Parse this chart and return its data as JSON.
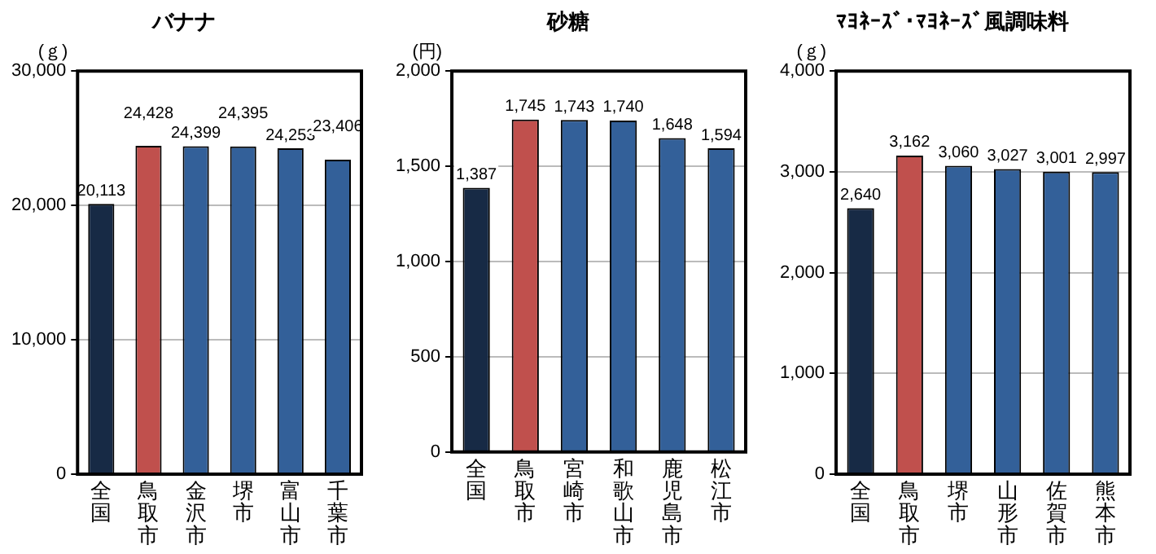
{
  "chart_data": [
    {
      "type": "bar",
      "title": "バナナ",
      "ylabel": "(ｇ)",
      "categories": [
        "全国",
        "鳥取市",
        "金沢市",
        "堺市",
        "富山市",
        "千葉市"
      ],
      "values": [
        20113,
        24428,
        24399,
        24395,
        24253,
        23406
      ],
      "colors": [
        "#172a45",
        "#c0504d",
        "#336099",
        "#336099",
        "#336099",
        "#336099"
      ],
      "value_labels": [
        "20,113",
        "24,428",
        "24,399",
        "24,395",
        "24,253",
        "23,406"
      ],
      "ylim": [
        0,
        30000
      ],
      "yticks": [
        {
          "value": 0,
          "label": "0"
        },
        {
          "value": 10000,
          "label": "10,000"
        },
        {
          "value": 20000,
          "label": "20,000"
        },
        {
          "value": 30000,
          "label": "30,000"
        }
      ],
      "grid": "y"
    },
    {
      "type": "bar",
      "title": "砂糖",
      "ylabel": "(円)",
      "categories": [
        "全国",
        "鳥取市",
        "宮崎市",
        "和歌山市",
        "鹿児島市",
        "松江市"
      ],
      "values": [
        1387,
        1745,
        1743,
        1740,
        1648,
        1594
      ],
      "colors": [
        "#172a45",
        "#c0504d",
        "#336099",
        "#336099",
        "#336099",
        "#336099"
      ],
      "value_labels": [
        "1,387",
        "1,745",
        "1,743",
        "1,740",
        "1,648",
        "1,594"
      ],
      "ylim": [
        0,
        2000
      ],
      "yticks": [
        {
          "value": 0,
          "label": "0"
        },
        {
          "value": 500,
          "label": "500"
        },
        {
          "value": 1000,
          "label": "1,000"
        },
        {
          "value": 1500,
          "label": "1,500"
        },
        {
          "value": 2000,
          "label": "2,000"
        }
      ],
      "grid": "y"
    },
    {
      "type": "bar",
      "title": "ﾏﾖﾈｰｽﾞ･ﾏﾖﾈｰｽﾞ風調味料",
      "ylabel": "(ｇ)",
      "categories": [
        "全国",
        "鳥取市",
        "堺市",
        "山形市",
        "佐賀市",
        "熊本市"
      ],
      "values": [
        2640,
        3162,
        3060,
        3027,
        3001,
        2997
      ],
      "colors": [
        "#172a45",
        "#c0504d",
        "#336099",
        "#336099",
        "#336099",
        "#336099"
      ],
      "value_labels": [
        "2,640",
        "3,162",
        "3,060",
        "3,027",
        "3,001",
        "2,997"
      ],
      "ylim": [
        0,
        4000
      ],
      "yticks": [
        {
          "value": 0,
          "label": "0"
        },
        {
          "value": 1000,
          "label": "1,000"
        },
        {
          "value": 2000,
          "label": "2,000"
        },
        {
          "value": 3000,
          "label": "3,000"
        },
        {
          "value": 4000,
          "label": "4,000"
        }
      ],
      "grid": "y"
    }
  ]
}
